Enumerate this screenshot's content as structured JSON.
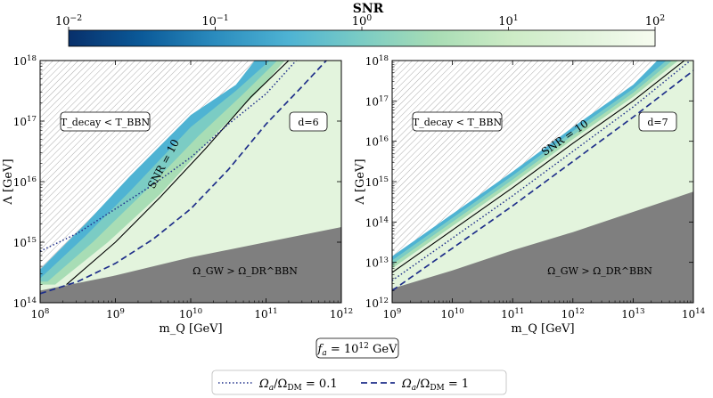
{
  "colorbar": {
    "title": "SNR",
    "scale": "log",
    "range": [
      0.01,
      100
    ],
    "ticks": [
      {
        "base": "10",
        "exp": "−2"
      },
      {
        "base": "10",
        "exp": "−1"
      },
      {
        "base": "10",
        "exp": "0"
      },
      {
        "base": "10",
        "exp": "1"
      },
      {
        "base": "10",
        "exp": "2"
      }
    ],
    "colors": [
      "#08306b",
      "#0b5a99",
      "#2b8cbe",
      "#4eb3d3",
      "#7bccc4",
      "#a8ddb5",
      "#ccebc5",
      "#e0f3db",
      "#f7fcf0"
    ]
  },
  "chart_data": [
    {
      "type": "contour",
      "title": "d = 6",
      "xlabel": "m_Q [GeV]",
      "ylabel": "Λ [GeV]",
      "xscale": "log",
      "yscale": "log",
      "xlim_exp": [
        8,
        12
      ],
      "ylim_exp": [
        14,
        18
      ],
      "xticks": [
        {
          "base": "10",
          "exp": "8"
        },
        {
          "base": "10",
          "exp": "9"
        },
        {
          "base": "10",
          "exp": "10"
        },
        {
          "base": "10",
          "exp": "11"
        },
        {
          "base": "10",
          "exp": "12"
        }
      ],
      "yticks": [
        {
          "base": "10",
          "exp": "14"
        },
        {
          "base": "10",
          "exp": "15"
        },
        {
          "base": "10",
          "exp": "16"
        },
        {
          "base": "10",
          "exp": "17"
        },
        {
          "base": "10",
          "exp": "18"
        }
      ],
      "d_label": "d=6",
      "decay_label": "T_decay < T_BBN",
      "gw_label": "Ω_GW > Ω_DR^BBN",
      "snr_line_label": "SNR = 10",
      "regions": {
        "decay_boundary": [
          [
            8.0,
            14.55
          ],
          [
            8.6,
            15.3
          ],
          [
            9.2,
            16.1
          ],
          [
            10.0,
            17.1
          ],
          [
            10.6,
            17.6
          ],
          [
            10.85,
            18.0
          ]
        ],
        "gw_boundary": [
          [
            8.0,
            14.2
          ],
          [
            9.0,
            14.45
          ],
          [
            10.0,
            14.75
          ],
          [
            11.0,
            15.0
          ],
          [
            12.0,
            15.25
          ]
        ],
        "snr_band_upper": [
          [
            8.0,
            14.4
          ],
          [
            8.6,
            15.1
          ],
          [
            9.2,
            15.85
          ],
          [
            10.0,
            16.9
          ],
          [
            10.6,
            17.5
          ],
          [
            11.05,
            18.0
          ]
        ],
        "snr_band_mid": [
          [
            8.1,
            14.35
          ],
          [
            8.7,
            15.0
          ],
          [
            9.4,
            15.85
          ],
          [
            10.1,
            16.75
          ],
          [
            10.7,
            17.45
          ],
          [
            11.15,
            18.0
          ]
        ],
        "snr_band_low": [
          [
            8.2,
            14.3
          ],
          [
            8.9,
            15.0
          ],
          [
            9.6,
            15.8
          ],
          [
            10.3,
            16.75
          ],
          [
            10.9,
            17.5
          ],
          [
            11.25,
            18.0
          ]
        ]
      },
      "series": [
        {
          "name": "SNR = 10",
          "style": "solid",
          "points": [
            [
              8.35,
              14.3
            ],
            [
              9.0,
              15.0
            ],
            [
              9.6,
              15.75
            ],
            [
              10.2,
              16.55
            ],
            [
              10.8,
              17.4
            ],
            [
              11.3,
              18.0
            ]
          ]
        },
        {
          "name": "Ω_a/Ω_DM = 0.1",
          "style": "dotted",
          "points": [
            [
              8.0,
              14.85
            ],
            [
              8.5,
              15.15
            ],
            [
              9.0,
              15.55
            ],
            [
              9.5,
              15.95
            ],
            [
              10.0,
              16.4
            ],
            [
              10.5,
              16.95
            ],
            [
              11.0,
              17.45
            ],
            [
              11.4,
              18.0
            ]
          ]
        },
        {
          "name": "Ω_a/Ω_DM = 1",
          "style": "dashed",
          "points": [
            [
              8.0,
              14.15
            ],
            [
              8.5,
              14.35
            ],
            [
              9.0,
              14.65
            ],
            [
              9.5,
              15.05
            ],
            [
              10.0,
              15.55
            ],
            [
              10.5,
              16.2
            ],
            [
              11.0,
              16.95
            ],
            [
              11.5,
              17.6
            ],
            [
              11.8,
              18.0
            ]
          ]
        }
      ]
    },
    {
      "type": "contour",
      "title": "d = 7",
      "xlabel": "m_Q [GeV]",
      "ylabel": "Λ [GeV]",
      "xscale": "log",
      "yscale": "log",
      "xlim_exp": [
        9,
        14
      ],
      "ylim_exp": [
        12,
        18
      ],
      "xticks": [
        {
          "base": "10",
          "exp": "9"
        },
        {
          "base": "10",
          "exp": "10"
        },
        {
          "base": "10",
          "exp": "11"
        },
        {
          "base": "10",
          "exp": "12"
        },
        {
          "base": "10",
          "exp": "13"
        },
        {
          "base": "10",
          "exp": "14"
        }
      ],
      "yticks": [
        {
          "base": "10",
          "exp": "12"
        },
        {
          "base": "10",
          "exp": "13"
        },
        {
          "base": "10",
          "exp": "14"
        },
        {
          "base": "10",
          "exp": "15"
        },
        {
          "base": "10",
          "exp": "16"
        },
        {
          "base": "10",
          "exp": "17"
        },
        {
          "base": "10",
          "exp": "18"
        }
      ],
      "d_label": "d=7",
      "decay_label": "T_decay < T_BBN",
      "gw_label": "Ω_GW > Ω_DR^BBN",
      "snr_line_label": "SNR = 10",
      "regions": {
        "decay_boundary": [
          [
            9.0,
            13.15
          ],
          [
            10.0,
            14.2
          ],
          [
            11.0,
            15.25
          ],
          [
            12.0,
            16.35
          ],
          [
            13.0,
            17.4
          ],
          [
            13.4,
            18.0
          ]
        ],
        "gw_boundary": [
          [
            9.0,
            12.35
          ],
          [
            10.0,
            12.8
          ],
          [
            11.0,
            13.3
          ],
          [
            12.0,
            13.75
          ],
          [
            13.0,
            14.25
          ],
          [
            14.0,
            14.75
          ]
        ],
        "snr_band_upper": [
          [
            9.0,
            13.05
          ],
          [
            10.0,
            14.1
          ],
          [
            11.0,
            15.15
          ],
          [
            12.0,
            16.25
          ],
          [
            13.0,
            17.3
          ],
          [
            13.55,
            18.0
          ]
        ],
        "snr_band_mid": [
          [
            9.0,
            12.95
          ],
          [
            10.0,
            14.0
          ],
          [
            11.0,
            15.05
          ],
          [
            12.0,
            16.15
          ],
          [
            13.0,
            17.2
          ],
          [
            13.65,
            18.0
          ]
        ],
        "snr_band_low": [
          [
            9.0,
            12.85
          ],
          [
            10.0,
            13.9
          ],
          [
            11.0,
            14.95
          ],
          [
            12.0,
            16.05
          ],
          [
            13.0,
            17.1
          ],
          [
            13.75,
            18.0
          ]
        ]
      },
      "series": [
        {
          "name": "SNR = 10",
          "style": "solid",
          "points": [
            [
              9.0,
              12.75
            ],
            [
              10.0,
              13.8
            ],
            [
              11.0,
              14.85
            ],
            [
              12.0,
              15.95
            ],
            [
              13.0,
              17.0
            ],
            [
              13.85,
              18.0
            ]
          ]
        },
        {
          "name": "Ω_a/Ω_DM = 0.1",
          "style": "dotted",
          "points": [
            [
              9.0,
              12.55
            ],
            [
              10.0,
              13.6
            ],
            [
              11.0,
              14.65
            ],
            [
              12.0,
              15.75
            ],
            [
              13.0,
              16.85
            ],
            [
              13.95,
              18.0
            ]
          ]
        },
        {
          "name": "Ω_a/Ω_DM = 1",
          "style": "dashed",
          "points": [
            [
              9.0,
              12.3
            ],
            [
              10.0,
              13.35
            ],
            [
              11.0,
              14.4
            ],
            [
              12.0,
              15.5
            ],
            [
              13.0,
              16.6
            ],
            [
              14.0,
              17.75
            ]
          ]
        }
      ]
    }
  ],
  "fa_label": {
    "text": "f",
    "sub": "a",
    "eq": " = 10",
    "exp": "12",
    "unit": " GeV"
  },
  "legend": {
    "items": [
      {
        "label": "Ω",
        "sub": "a",
        "mid": "/Ω",
        "sub2": "DM",
        "value": " = 0.1",
        "style": "dotted"
      },
      {
        "label": "Ω",
        "sub": "a",
        "mid": "/Ω",
        "sub2": "DM",
        "value": " = 1",
        "style": "dashed"
      }
    ]
  },
  "line_color": "#1f2f8a",
  "region_colors": {
    "background": "#e3f4dd",
    "gw": "#7f7f7f",
    "band_outer": "#4fb3d3",
    "band_mid": "#7bccc4",
    "band_inner": "#a8ddb5",
    "hatch": "#888888"
  }
}
